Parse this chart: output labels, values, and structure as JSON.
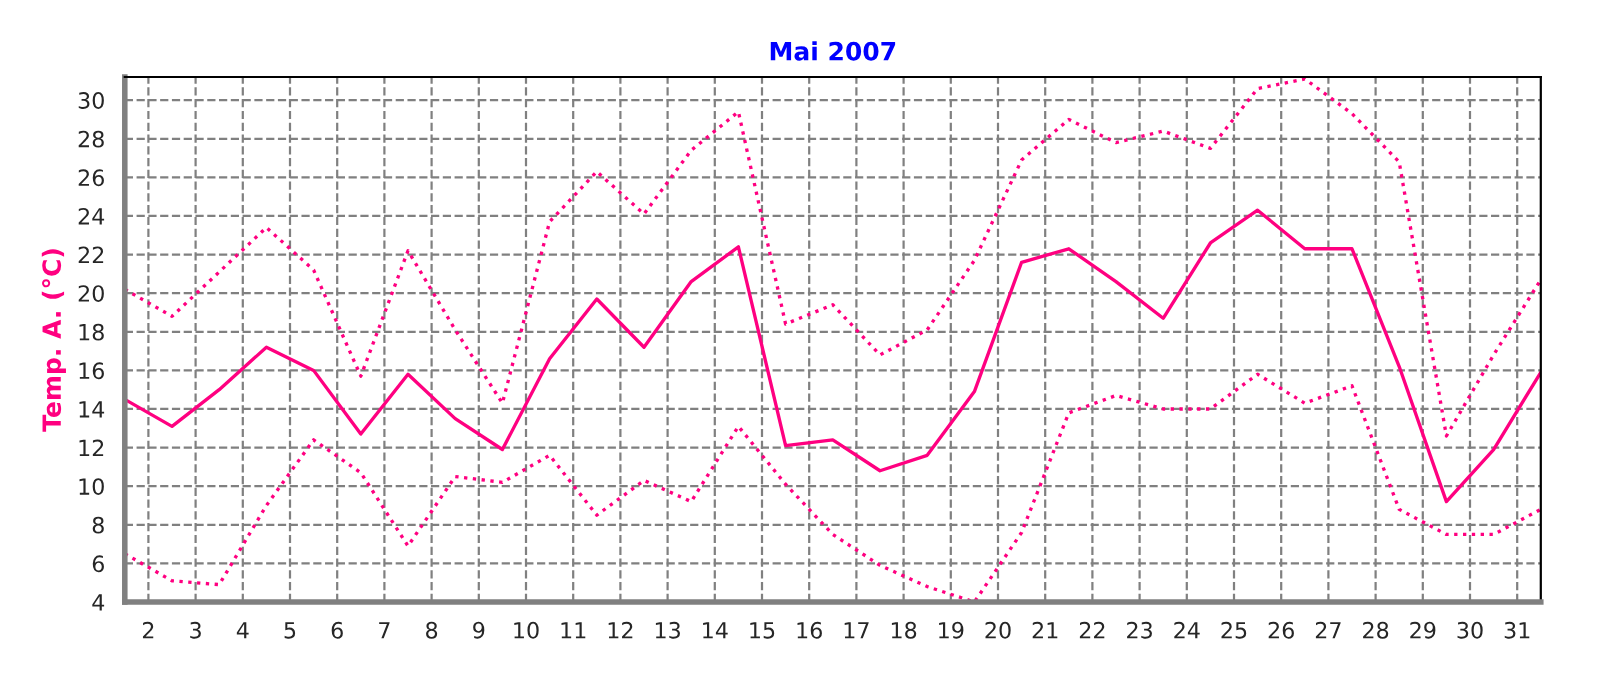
{
  "chart_data": {
    "type": "line",
    "title": "Mai 2007",
    "ylabel": "Temp. A. (°C)",
    "x": [
      1.5,
      2.5,
      3.5,
      4.5,
      5.5,
      6.5,
      7.5,
      8.5,
      9.5,
      10.5,
      11.5,
      12.5,
      13.5,
      14.5,
      15.5,
      16.5,
      17.5,
      18.5,
      19.5,
      20.5,
      21.5,
      22.5,
      23.5,
      24.5,
      25.5,
      26.5,
      27.5,
      28.5,
      29.5,
      30.5,
      31.5
    ],
    "series": [
      {
        "color": "#ff0080",
        "line_style": "dotted",
        "values": [
          20.2,
          18.8,
          21.1,
          23.4,
          21.2,
          15.7,
          22.2,
          18.1,
          14.3,
          23.7,
          26.3,
          24.1,
          27.4,
          29.4,
          18.4,
          19.4,
          16.8,
          18.1,
          21.7,
          26.9,
          29.0,
          27.8,
          28.4,
          27.5,
          30.6,
          31.1,
          29.3,
          26.8,
          12.6,
          16.8,
          20.7
        ]
      },
      {
        "color": "#ff0080",
        "line_style": "solid",
        "values": [
          14.5,
          13.1,
          15.0,
          17.2,
          16.0,
          12.7,
          15.8,
          13.5,
          11.9,
          16.6,
          19.7,
          17.2,
          20.6,
          22.4,
          12.1,
          12.4,
          10.8,
          11.6,
          14.9,
          21.6,
          22.3,
          20.6,
          18.7,
          22.6,
          24.3,
          22.3,
          22.3,
          16.2,
          9.2,
          11.9,
          15.9
        ]
      },
      {
        "color": "#ff0080",
        "line_style": "dotted",
        "values": [
          6.5,
          5.1,
          4.9,
          9.0,
          12.4,
          10.7,
          6.9,
          10.5,
          10.2,
          11.6,
          8.5,
          10.3,
          9.2,
          13.1,
          10.1,
          7.5,
          5.9,
          4.8,
          4.0,
          7.6,
          13.8,
          14.7,
          14.0,
          14.0,
          15.8,
          14.3,
          15.2,
          8.8,
          7.5,
          7.5,
          8.8
        ]
      }
    ],
    "xlim": [
      1.5,
      31.5
    ],
    "xticks": [
      2,
      3,
      4,
      5,
      6,
      7,
      8,
      9,
      10,
      11,
      12,
      13,
      14,
      15,
      16,
      17,
      18,
      19,
      20,
      21,
      22,
      23,
      24,
      25,
      26,
      27,
      28,
      29,
      30,
      31
    ],
    "ylim": [
      4,
      31.2
    ],
    "yticks": [
      4,
      6,
      8,
      10,
      12,
      14,
      16,
      18,
      20,
      22,
      24,
      26,
      28,
      30
    ],
    "grid": true
  }
}
